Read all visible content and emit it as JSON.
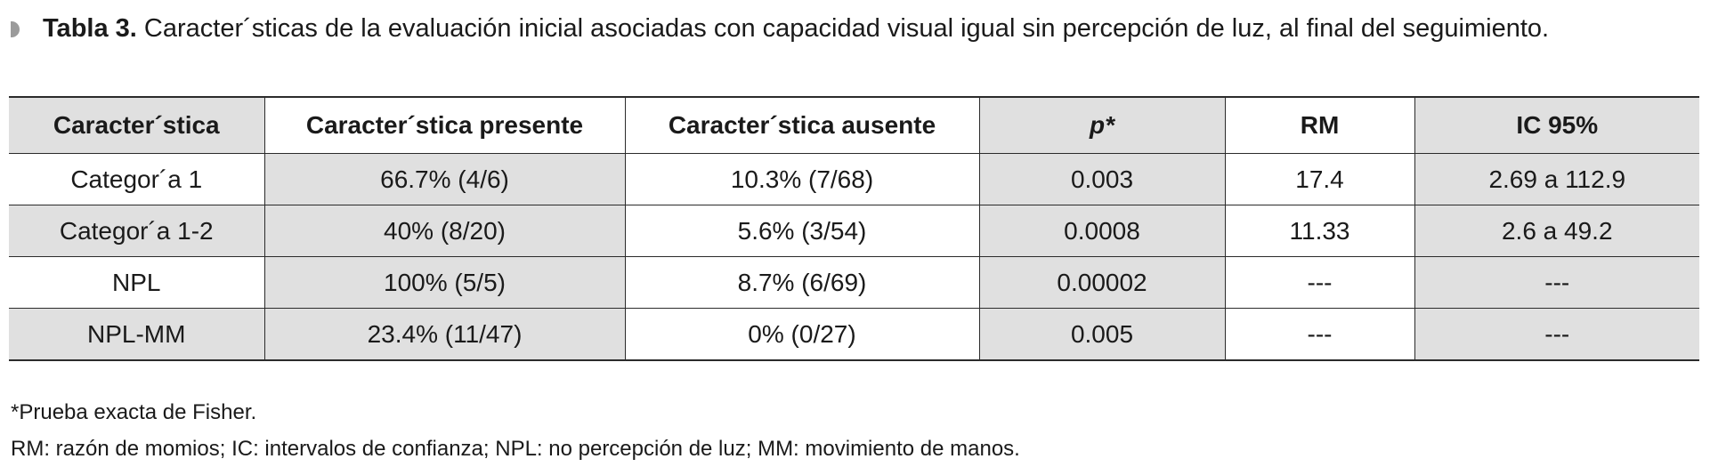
{
  "caption": {
    "label": "Tabla 3.",
    "text": " Caracter´sticas de la evaluación inicial asociadas con capacidad visual igual sin percepción de luz, al final del seguimiento."
  },
  "table": {
    "headers": [
      "Caracter´stica",
      "Caracter´stica presente",
      "Caracter´stica ausente",
      "p*",
      "RM",
      "IC 95%"
    ],
    "rows": [
      [
        "Categor´a 1",
        "66.7% (4/6)",
        "10.3% (7/68)",
        "0.003",
        "17.4",
        "2.69 a 112.9"
      ],
      [
        "Categor´a 1-2",
        "40% (8/20)",
        "5.6% (3/54)",
        "0.0008",
        "11.33",
        "2.6 a 49.2"
      ],
      [
        "NPL",
        "100% (5/5)",
        "8.7% (6/69)",
        "0.00002",
        "---",
        "---"
      ],
      [
        "NPL-MM",
        "23.4% (11/47)",
        "0% (0/27)",
        "0.005",
        "---",
        "---"
      ]
    ]
  },
  "footnotes": {
    "fisher": "*Prueba exacta de Fisher.",
    "abbreviations": "RM: razón de momios; IC: intervalos de confianza; NPL: no percepción de luz; MM: movimiento de manos."
  },
  "colors": {
    "shaded_cell": "#e0e0e0",
    "bullet": "#9b9b9b",
    "text": "#1a1a1a"
  }
}
